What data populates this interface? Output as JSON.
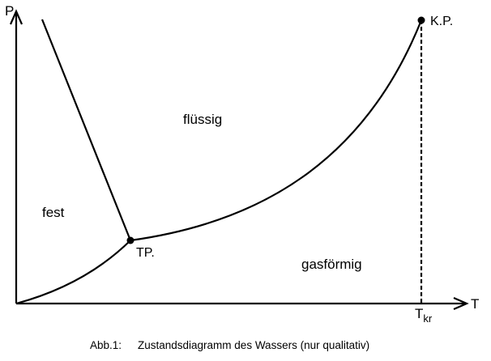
{
  "axes": {
    "y_label": "P",
    "x_label": "T",
    "x_tick_main": "T",
    "x_tick_sub": "kr"
  },
  "regions": {
    "solid": "fest",
    "liquid": "flüssig",
    "gas": "gasförmig"
  },
  "points": {
    "triple": "TP.",
    "critical": "K.P."
  },
  "caption": {
    "number": "Abb.1:",
    "text": "Zustandsdiagramm des Wassers (nur qualitativ)"
  },
  "colors": {
    "line": "#000000",
    "background": "#ffffff"
  }
}
